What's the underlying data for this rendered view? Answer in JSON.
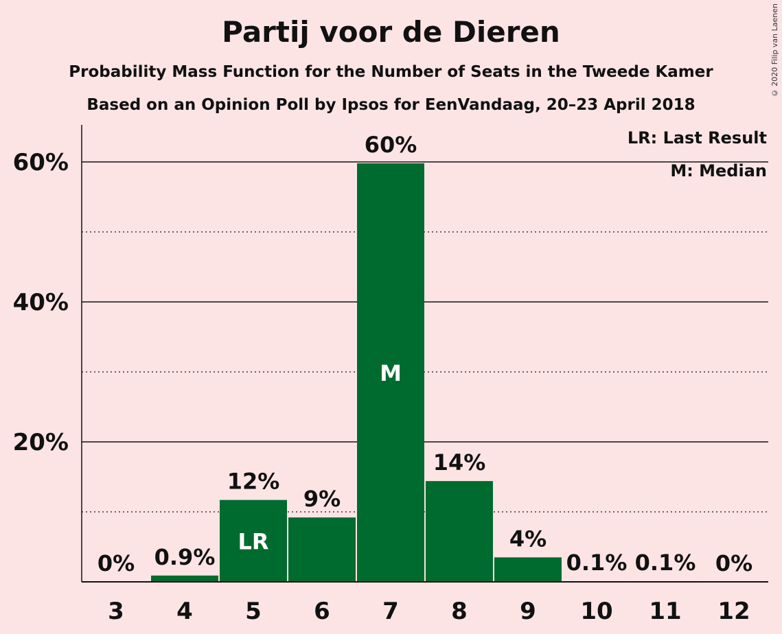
{
  "header": {
    "title": "Partij voor de Dieren",
    "subtitle": "Probability Mass Function for the Number of Seats in the Tweede Kamer",
    "subtitle2": "Based on an Opinion Poll by Ipsos for EenVandaag, 20–23 April 2018",
    "copyright": "© 2020 Filip van Laenen"
  },
  "legend": {
    "lr": "LR: Last Result",
    "m": "M: Median"
  },
  "colors": {
    "bar": "#006b2e",
    "background": "#fce4e5"
  },
  "chart_data": {
    "type": "bar",
    "categories": [
      "3",
      "4",
      "5",
      "6",
      "7",
      "8",
      "9",
      "10",
      "11",
      "12"
    ],
    "values": [
      0,
      0.9,
      11.7,
      9.2,
      59.8,
      14.4,
      3.5,
      0.1,
      0.1,
      0
    ],
    "value_labels": [
      "0%",
      "0.9%",
      "12%",
      "9%",
      "60%",
      "14%",
      "4%",
      "0.1%",
      "0.1%",
      "0%"
    ],
    "bar_marks": {
      "5": "LR",
      "7": "M"
    },
    "ylim": [
      0,
      65
    ],
    "y_major_ticks": [
      20,
      40,
      60
    ],
    "y_tick_labels": [
      "20%",
      "40%",
      "60%"
    ],
    "y_minor_gridlines": [
      10,
      30,
      50
    ],
    "grid": true,
    "legend_position": "top-right"
  }
}
